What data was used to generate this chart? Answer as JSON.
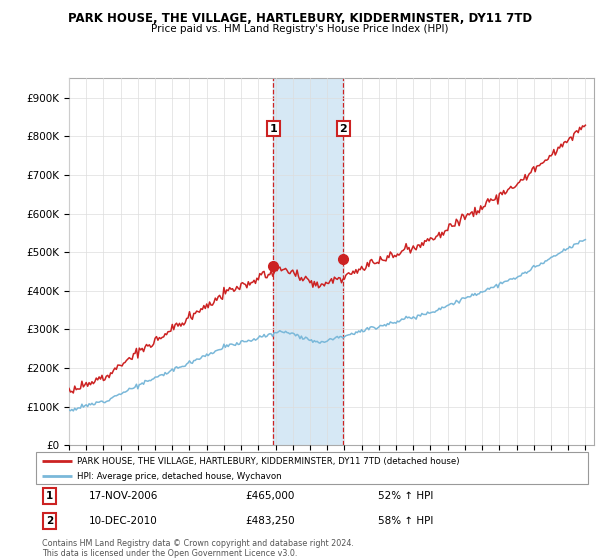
{
  "title": "PARK HOUSE, THE VILLAGE, HARTLEBURY, KIDDERMINSTER, DY11 7TD",
  "subtitle": "Price paid vs. HM Land Registry's House Price Index (HPI)",
  "ylabel_ticks": [
    "£0",
    "£100K",
    "£200K",
    "£300K",
    "£400K",
    "£500K",
    "£600K",
    "£700K",
    "£800K",
    "£900K"
  ],
  "ytick_values": [
    0,
    100000,
    200000,
    300000,
    400000,
    500000,
    600000,
    700000,
    800000,
    900000
  ],
  "ylim": [
    0,
    950000
  ],
  "hpi_color": "#7ab8d9",
  "property_color": "#cc2222",
  "sale1_date": "17-NOV-2006",
  "sale1_price": 465000,
  "sale1_hpi": "52% ↑ HPI",
  "sale1_x": 2006.88,
  "sale2_date": "10-DEC-2010",
  "sale2_price": 483250,
  "sale2_hpi": "58% ↑ HPI",
  "sale2_x": 2010.94,
  "shade_color": "#d6e8f5",
  "legend_property": "PARK HOUSE, THE VILLAGE, HARTLEBURY, KIDDERMINSTER, DY11 7TD (detached house)",
  "legend_hpi": "HPI: Average price, detached house, Wychavon",
  "footnote": "Contains HM Land Registry data © Crown copyright and database right 2024.\nThis data is licensed under the Open Government Licence v3.0.",
  "background_color": "#ffffff",
  "grid_color": "#dddddd"
}
